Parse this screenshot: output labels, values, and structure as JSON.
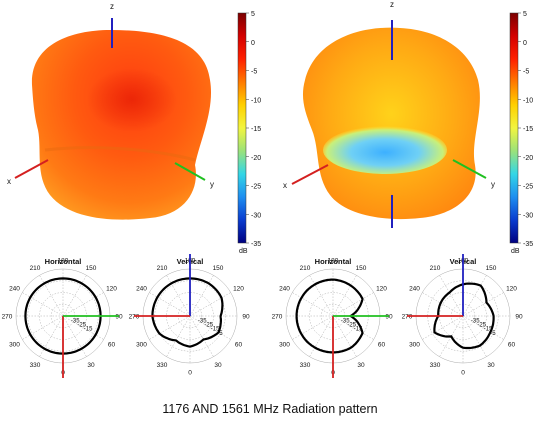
{
  "caption": "1176 AND 1561 MHz Radiation pattern",
  "colorbar": {
    "unit": "dB",
    "ticks": [
      "5",
      "0",
      "-5",
      "-10",
      "-15",
      "-20",
      "-25",
      "-30",
      "-35"
    ],
    "stops": [
      "#7a0000",
      "#d40000",
      "#ff2000",
      "#ff7a00",
      "#ffd000",
      "#f2f540",
      "#9be27a",
      "#33d6e6",
      "#1e8ef0",
      "#0a3ccf",
      "#000080"
    ]
  },
  "axes3d": {
    "x": "x",
    "y": "y",
    "z": "z",
    "x_color": "#d42020",
    "y_color": "#20c020",
    "z_color": "#2020c0"
  },
  "polar_labels": {
    "horizontal": "Horizontal",
    "vertical": "Vertical"
  },
  "chart_data": [
    {
      "type": "surface3d",
      "title": "",
      "frequency": "1176 MHz",
      "color_range_db": [
        -35,
        5
      ],
      "dominant_level_db": [
        -5,
        0
      ]
    },
    {
      "type": "surface3d",
      "title": "",
      "frequency": "1561 MHz",
      "color_range_db": [
        -35,
        5
      ],
      "dominant_level_db": [
        -10,
        -2
      ],
      "min_region_db": -20
    },
    {
      "type": "polar",
      "title": "Horizontal",
      "angle_labels": [
        "180",
        "150",
        "120",
        "90",
        "60",
        "30",
        "0",
        "330",
        "300",
        "270",
        "240",
        "210"
      ],
      "radial_labels": [
        "-35",
        "-25",
        "-15"
      ],
      "angles_deg": [
        0,
        30,
        60,
        90,
        120,
        150,
        180,
        210,
        240,
        270,
        300,
        330
      ],
      "gain_db": [
        -3,
        -3,
        -3,
        -3,
        -3,
        -3,
        -3,
        -3,
        -3,
        -3,
        -3,
        -3
      ]
    },
    {
      "type": "polar",
      "title": "Vertical",
      "angle_labels": [
        "180",
        "150",
        "120",
        "90",
        "60",
        "30",
        "0",
        "330",
        "300",
        "270",
        "240",
        "210"
      ],
      "radial_labels": [
        "-35",
        "-25",
        "-15",
        "-5"
      ],
      "angles_deg": [
        0,
        30,
        60,
        90,
        120,
        150,
        180,
        210,
        240,
        270,
        300,
        330
      ],
      "gain_db": [
        -3,
        -3,
        -4,
        -9,
        -7,
        -12,
        -9,
        -11,
        -5,
        -3,
        -3,
        -3
      ]
    },
    {
      "type": "polar",
      "title": "Horizontal",
      "angle_labels": [
        "180",
        "150",
        "120",
        "90",
        "60",
        "30",
        "0",
        "330",
        "300",
        "270",
        "240",
        "210"
      ],
      "radial_labels": [
        "-35",
        "-25",
        "-15"
      ],
      "angles_deg": [
        0,
        30,
        60,
        90,
        120,
        150,
        180,
        210,
        240,
        270,
        300,
        330
      ],
      "gain_db": [
        -4,
        -5,
        -6,
        -20,
        -6,
        -4,
        -4,
        -4,
        -4,
        -4,
        -4,
        -4
      ]
    },
    {
      "type": "polar",
      "title": "Vertical",
      "angle_labels": [
        "180",
        "150",
        "120",
        "90",
        "60",
        "30",
        "0",
        "330",
        "300",
        "270",
        "240",
        "210"
      ],
      "radial_labels": [
        "-35",
        "-25",
        "-15",
        "-5"
      ],
      "angles_deg": [
        0,
        30,
        60,
        90,
        120,
        150,
        180,
        210,
        240,
        270,
        300,
        330
      ],
      "gain_db": [
        -8,
        -5,
        -12,
        -9,
        -8,
        -6,
        -8,
        -15,
        -7,
        -14,
        -13,
        -12
      ]
    }
  ]
}
